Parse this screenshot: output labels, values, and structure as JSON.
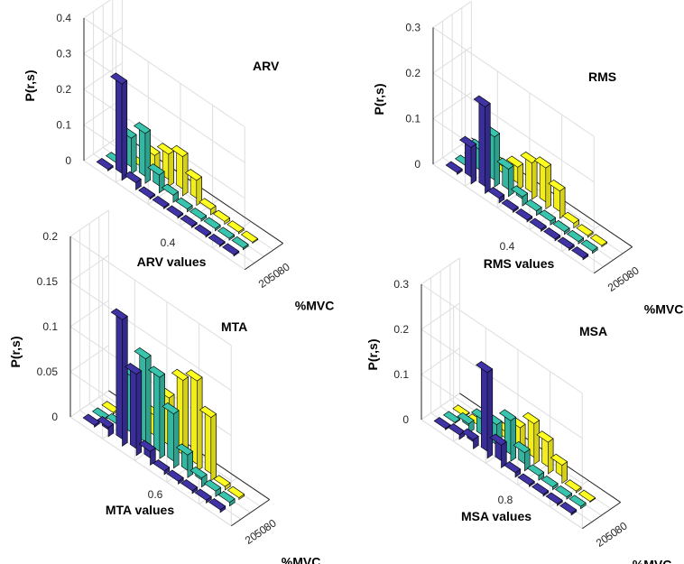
{
  "colors": {
    "20": "#3a2f9a",
    "50": "#35b6a0",
    "80": "#f2ee1e",
    "grid": "#dedede",
    "axis": "#262626"
  },
  "chart_data": [
    {
      "type": "bar3",
      "title": "ARV",
      "xlabel": "ARV values",
      "ylabel": "%MVC",
      "zlabel": "P(r,s)",
      "zticks": [
        "0",
        "0.1",
        "0.2",
        "0.3",
        "0.4"
      ],
      "zlim": [
        0,
        0.4
      ],
      "xtick_label": "0.4",
      "yticks": [
        "20",
        "50",
        "80"
      ],
      "series": [
        {
          "name": "20",
          "values": [
            0.004,
            0.27,
            0.02,
            0.004,
            0.004,
            0.004,
            0.004,
            0.004,
            0.004,
            0.004
          ]
        },
        {
          "name": "50",
          "values": [
            0.003,
            0.1,
            0.14,
            0.05,
            0.02,
            0.008,
            0.006,
            0.006,
            0.005,
            0.005
          ]
        },
        {
          "name": "80",
          "values": [
            0.003,
            0.003,
            0.06,
            0.09,
            0.11,
            0.07,
            0.015,
            0.008,
            0.005,
            0.003
          ]
        }
      ]
    },
    {
      "type": "bar3",
      "title": "RMS",
      "xlabel": "RMS values",
      "ylabel": "%MVC",
      "zlabel": "P(r,s)",
      "zticks": [
        "0",
        "0.1",
        "0.2",
        "0.3"
      ],
      "zlim": [
        0,
        0.3
      ],
      "xtick_label": "0.4",
      "yticks": [
        "20",
        "50",
        "80"
      ],
      "series": [
        {
          "name": "20",
          "values": [
            0.004,
            0.08,
            0.19,
            0.01,
            0.004,
            0.004,
            0.004,
            0.004,
            0.004,
            0.004
          ]
        },
        {
          "name": "50",
          "values": [
            0.004,
            0.06,
            0.11,
            0.06,
            0.02,
            0.01,
            0.008,
            0.006,
            0.005,
            0.005
          ]
        },
        {
          "name": "80",
          "values": [
            0.003,
            0.004,
            0.03,
            0.05,
            0.08,
            0.09,
            0.06,
            0.01,
            0.004,
            0.003
          ]
        }
      ]
    },
    {
      "type": "bar3",
      "title": "MTA",
      "xlabel": "MTA values",
      "ylabel": "%MVC",
      "zlabel": "P(r,s)",
      "zticks": [
        "0",
        "0.05",
        "0.1",
        "0.15",
        "0.2"
      ],
      "zlim": [
        0,
        0.2
      ],
      "xtick_label": "0.6",
      "yticks": [
        "20",
        "50",
        "80"
      ],
      "series": [
        {
          "name": "20",
          "values": [
            0.002,
            0.01,
            0.14,
            0.09,
            0.015,
            0.004,
            0.003,
            0.003,
            0.003,
            0.003
          ]
        },
        {
          "name": "50",
          "values": [
            0.002,
            0.006,
            0.07,
            0.1,
            0.09,
            0.06,
            0.025,
            0.01,
            0.006,
            0.004
          ]
        },
        {
          "name": "80",
          "values": [
            0.002,
            0.002,
            0.004,
            0.03,
            0.06,
            0.09,
            0.1,
            0.07,
            0.004,
            0.002
          ]
        }
      ]
    },
    {
      "type": "bar3",
      "title": "MSA",
      "xlabel": "MSA values",
      "ylabel": "%MVC",
      "zlabel": "P(r,s)",
      "zticks": [
        "0",
        "0.1",
        "0.2",
        "0.3"
      ],
      "zlim": [
        0,
        0.3
      ],
      "xtick_label": "0.8",
      "yticks": [
        "20",
        "50",
        "80"
      ],
      "series": [
        {
          "name": "20",
          "values": [
            0.003,
            0.01,
            0.02,
            0.19,
            0.05,
            0.01,
            0.004,
            0.004,
            0.004,
            0.004
          ]
        },
        {
          "name": "50",
          "values": [
            0.002,
            0.02,
            0.05,
            0.06,
            0.09,
            0.04,
            0.01,
            0.006,
            0.005,
            0.005
          ]
        },
        {
          "name": "80",
          "values": [
            0.002,
            0.003,
            0.004,
            0.03,
            0.06,
            0.09,
            0.07,
            0.04,
            0.004,
            0.002
          ]
        }
      ]
    }
  ]
}
